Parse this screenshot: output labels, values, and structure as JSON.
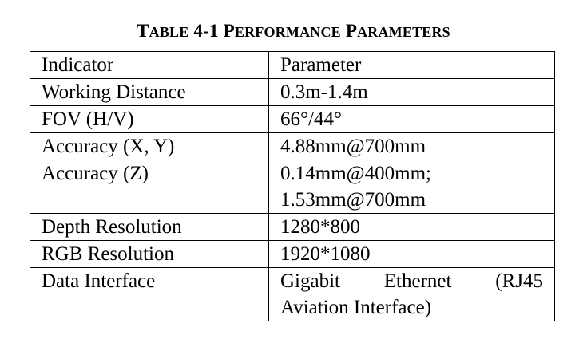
{
  "caption": {
    "label_first_letter": "T",
    "label_rest": "ABLE",
    "number": "4-1",
    "title_word1_first": "P",
    "title_word1_rest": "ERFORMANCE",
    "title_word2_first": "P",
    "title_word2_rest": "ARAMETERS"
  },
  "table": {
    "header": [
      "Indicator",
      "Parameter"
    ],
    "rows": [
      {
        "indicator": "Working Distance",
        "parameter": [
          "0.3m-1.4m"
        ]
      },
      {
        "indicator": "FOV (H/V)",
        "parameter": [
          "66°/44°"
        ]
      },
      {
        "indicator": "Accuracy (X, Y)",
        "parameter": [
          "4.88mm@700mm"
        ]
      },
      {
        "indicator": "Accuracy (Z)",
        "parameter": [
          "0.14mm@400mm;",
          "1.53mm@700mm"
        ]
      },
      {
        "indicator": "Depth Resolution",
        "parameter": [
          "1280*800"
        ]
      },
      {
        "indicator": "RGB Resolution",
        "parameter": [
          "1920*1080"
        ]
      },
      {
        "indicator": "Data Interface",
        "parameter_words": [
          "Gigabit",
          "Ethernet",
          "(RJ45"
        ],
        "parameter_line2": "Aviation Interface)"
      }
    ]
  }
}
